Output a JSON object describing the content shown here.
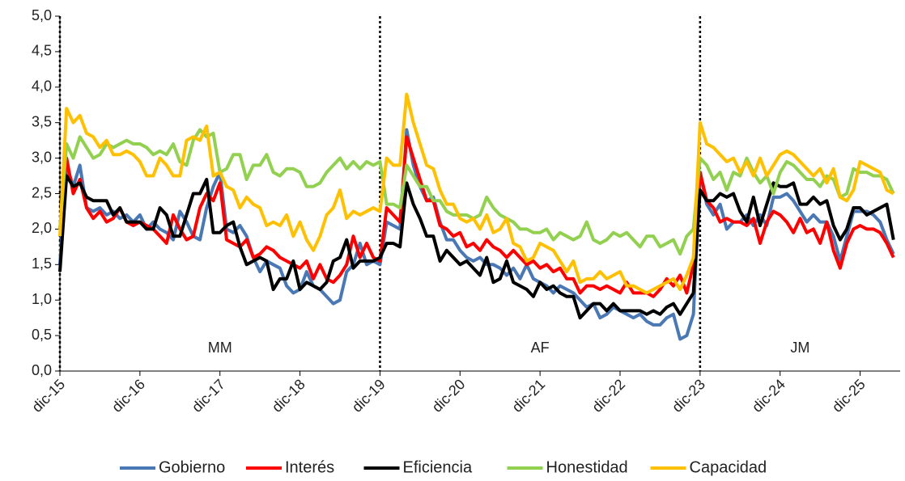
{
  "chart_data": {
    "type": "line",
    "categories": [
      "dic-15",
      null,
      null,
      null,
      null,
      null,
      null,
      null,
      null,
      null,
      null,
      null,
      "dic-16",
      null,
      null,
      null,
      null,
      null,
      null,
      null,
      null,
      null,
      null,
      null,
      "dic-17",
      null,
      null,
      null,
      null,
      null,
      null,
      null,
      null,
      null,
      null,
      null,
      "dic-18",
      null,
      null,
      null,
      null,
      null,
      null,
      null,
      null,
      null,
      null,
      null,
      "dic-19",
      null,
      null,
      null,
      null,
      null,
      null,
      null,
      null,
      null,
      null,
      null,
      "dic-20",
      null,
      null,
      null,
      null,
      null,
      null,
      null,
      null,
      null,
      null,
      null,
      "dic-21",
      null,
      null,
      null,
      null,
      null,
      null,
      null,
      null,
      null,
      null,
      null,
      "dic-22",
      null,
      null,
      null,
      null,
      null,
      null,
      null,
      null,
      null,
      null,
      null,
      "dic-23",
      null,
      null,
      null,
      null,
      null,
      null,
      null,
      null,
      null,
      null,
      null,
      "dic-24",
      null,
      null,
      null,
      null,
      null,
      null,
      null,
      null,
      null,
      null,
      null,
      "dic-25",
      null,
      null,
      null,
      null,
      null
    ],
    "series": [
      {
        "name": "Gobierno",
        "color": "#4a78b5",
        "values": [
          1.5,
          2.9,
          2.6,
          2.9,
          2.3,
          2.25,
          2.3,
          2.2,
          2.25,
          2.15,
          2.2,
          2.1,
          2.2,
          2.0,
          2.1,
          2.0,
          1.95,
          1.85,
          2.25,
          2.1,
          1.9,
          1.85,
          2.3,
          2.6,
          2.8,
          2.0,
          1.95,
          2.05,
          1.9,
          1.6,
          1.4,
          1.55,
          1.5,
          1.45,
          1.2,
          1.1,
          1.15,
          1.4,
          1.2,
          1.15,
          1.05,
          0.95,
          1.0,
          1.4,
          1.5,
          1.8,
          1.5,
          1.55,
          1.5,
          2.1,
          2.05,
          2.0,
          3.4,
          2.9,
          2.6,
          2.4,
          2.45,
          2.1,
          1.85,
          1.85,
          1.7,
          1.6,
          1.55,
          1.6,
          1.5,
          1.5,
          1.45,
          1.35,
          1.45,
          1.3,
          1.5,
          1.3,
          1.25,
          1.2,
          1.1,
          1.2,
          1.15,
          1.1,
          1.0,
          0.9,
          0.95,
          0.75,
          0.8,
          0.9,
          0.85,
          0.8,
          0.75,
          0.8,
          0.7,
          0.65,
          0.65,
          0.75,
          0.8,
          0.45,
          0.5,
          0.8,
          2.8,
          2.35,
          2.2,
          2.35,
          2.0,
          2.1,
          2.1,
          2.2,
          2.05,
          2.2,
          2.05,
          2.45,
          2.45,
          2.5,
          2.4,
          2.25,
          2.1,
          2.2,
          2.1,
          2.1,
          1.9,
          1.55,
          1.9,
          2.25,
          2.25,
          2.25,
          2.2,
          2.1,
          1.85,
          1.65
        ]
      },
      {
        "name": "Interés",
        "color": "#ff0000",
        "values": [
          2.0,
          3.0,
          2.5,
          2.7,
          2.3,
          2.15,
          2.25,
          2.1,
          2.15,
          2.3,
          2.1,
          2.05,
          2.1,
          2.05,
          2.0,
          1.9,
          1.8,
          2.2,
          2.0,
          1.85,
          1.9,
          2.3,
          2.5,
          2.4,
          2.65,
          1.85,
          1.8,
          1.75,
          1.85,
          1.6,
          1.65,
          1.75,
          1.7,
          1.6,
          1.55,
          1.5,
          1.45,
          1.55,
          1.3,
          1.5,
          1.3,
          1.25,
          1.35,
          1.5,
          1.9,
          1.6,
          1.8,
          1.6,
          1.55,
          2.3,
          2.2,
          2.1,
          3.3,
          3.0,
          2.7,
          2.4,
          2.4,
          2.05,
          2.0,
          1.9,
          1.95,
          1.75,
          1.8,
          1.7,
          1.85,
          1.75,
          1.7,
          1.6,
          1.7,
          1.6,
          1.5,
          1.55,
          1.45,
          1.5,
          1.4,
          1.45,
          1.3,
          1.3,
          1.1,
          1.2,
          1.2,
          1.15,
          1.2,
          1.15,
          1.1,
          1.25,
          1.1,
          1.1,
          1.1,
          1.05,
          1.15,
          1.3,
          1.2,
          1.35,
          1.1,
          1.5,
          2.8,
          2.4,
          2.3,
          2.1,
          2.15,
          2.1,
          2.1,
          2.05,
          2.15,
          1.8,
          2.1,
          2.25,
          2.2,
          2.1,
          1.95,
          2.15,
          1.95,
          2.0,
          1.8,
          2.1,
          1.7,
          1.45,
          1.8,
          2.0,
          2.05,
          2.0,
          2.0,
          1.95,
          1.8,
          1.6
        ]
      },
      {
        "name": "Eficiencia",
        "color": "#000000",
        "values": [
          1.4,
          2.75,
          2.6,
          2.65,
          2.45,
          2.4,
          2.4,
          2.4,
          2.2,
          2.3,
          2.1,
          2.1,
          2.1,
          2.0,
          2.0,
          2.3,
          2.2,
          1.9,
          1.9,
          2.2,
          2.5,
          2.5,
          2.7,
          1.95,
          1.95,
          2.05,
          2.1,
          1.75,
          1.5,
          1.55,
          1.6,
          1.55,
          1.15,
          1.3,
          1.3,
          1.55,
          1.15,
          1.25,
          1.2,
          1.15,
          1.25,
          1.55,
          1.6,
          1.85,
          1.45,
          1.55,
          1.55,
          1.55,
          1.6,
          1.8,
          1.8,
          1.75,
          2.65,
          2.35,
          2.15,
          1.9,
          1.9,
          1.55,
          1.7,
          1.6,
          1.5,
          1.55,
          1.45,
          1.35,
          1.6,
          1.25,
          1.3,
          1.55,
          1.25,
          1.2,
          1.15,
          1.05,
          1.25,
          1.15,
          1.2,
          1.1,
          1.05,
          1.05,
          0.75,
          0.85,
          0.95,
          0.95,
          0.85,
          0.95,
          0.85,
          0.85,
          0.85,
          0.85,
          0.8,
          0.85,
          0.8,
          0.9,
          0.95,
          0.8,
          0.95,
          1.1,
          2.55,
          2.4,
          2.4,
          2.5,
          2.45,
          2.5,
          2.25,
          2.1,
          2.45,
          2.05,
          2.35,
          2.65,
          2.6,
          2.6,
          2.65,
          2.35,
          2.35,
          2.45,
          2.35,
          2.4,
          2.05,
          1.85,
          2.0,
          2.3,
          2.3,
          2.2,
          2.25,
          2.3,
          2.35,
          1.85
        ]
      },
      {
        "name": "Honestidad",
        "color": "#92d050",
        "values": [
          2.0,
          3.2,
          3.0,
          3.3,
          3.15,
          3.0,
          3.05,
          3.2,
          3.15,
          3.2,
          3.25,
          3.2,
          3.2,
          3.15,
          3.05,
          3.1,
          3.05,
          3.2,
          2.95,
          2.9,
          3.25,
          3.4,
          3.3,
          3.35,
          2.8,
          2.85,
          3.05,
          3.05,
          2.7,
          2.9,
          2.9,
          3.05,
          2.8,
          2.75,
          2.85,
          2.85,
          2.8,
          2.6,
          2.6,
          2.65,
          2.8,
          2.9,
          3.0,
          2.85,
          2.95,
          2.85,
          2.95,
          2.9,
          2.95,
          2.35,
          2.35,
          2.3,
          2.9,
          2.75,
          2.6,
          2.6,
          2.4,
          2.4,
          2.25,
          2.2,
          2.2,
          2.2,
          2.15,
          2.2,
          2.45,
          2.3,
          2.2,
          2.15,
          2.1,
          2.0,
          2.0,
          1.95,
          1.95,
          2.0,
          1.85,
          1.95,
          1.9,
          1.85,
          1.9,
          2.1,
          1.85,
          1.8,
          1.85,
          1.95,
          1.9,
          1.95,
          1.85,
          1.75,
          1.9,
          1.9,
          1.75,
          1.8,
          1.85,
          1.65,
          1.9,
          2.0,
          3.0,
          2.9,
          2.7,
          2.8,
          2.55,
          2.8,
          2.75,
          3.0,
          2.8,
          2.65,
          2.75,
          2.5,
          2.8,
          2.95,
          2.9,
          2.8,
          2.7,
          2.7,
          2.6,
          2.75,
          2.7,
          2.45,
          2.5,
          2.85,
          2.8,
          2.8,
          2.75,
          2.75,
          2.7,
          2.5
        ]
      },
      {
        "name": "Capacidad",
        "color": "#ffc000",
        "values": [
          1.9,
          3.7,
          3.5,
          3.6,
          3.35,
          3.3,
          3.15,
          3.25,
          3.05,
          3.05,
          3.1,
          3.05,
          2.95,
          2.75,
          2.75,
          3.0,
          2.9,
          2.75,
          2.75,
          3.25,
          3.3,
          3.25,
          3.45,
          2.75,
          2.8,
          2.6,
          2.55,
          2.3,
          2.45,
          2.35,
          2.3,
          2.05,
          2.1,
          2.05,
          2.2,
          1.9,
          2.1,
          1.85,
          1.7,
          1.9,
          2.2,
          2.3,
          2.55,
          2.15,
          2.25,
          2.2,
          2.25,
          2.3,
          2.25,
          3.0,
          2.9,
          2.9,
          3.9,
          3.5,
          3.2,
          2.9,
          2.85,
          2.55,
          2.35,
          2.35,
          2.15,
          2.1,
          2.15,
          2.0,
          2.2,
          1.95,
          2.0,
          2.15,
          1.8,
          1.75,
          1.55,
          1.6,
          1.8,
          1.75,
          1.7,
          1.55,
          1.4,
          1.55,
          1.25,
          1.3,
          1.3,
          1.4,
          1.3,
          1.35,
          1.4,
          1.2,
          1.2,
          1.15,
          1.1,
          1.15,
          1.2,
          1.25,
          1.3,
          1.15,
          1.35,
          1.6,
          3.5,
          3.2,
          3.15,
          3.05,
          2.95,
          3.0,
          2.8,
          2.95,
          2.75,
          3.0,
          2.75,
          2.9,
          3.05,
          3.1,
          3.05,
          2.95,
          2.85,
          2.75,
          2.85,
          2.65,
          2.85,
          2.45,
          2.4,
          2.55,
          2.95,
          2.9,
          2.85,
          2.8,
          2.55,
          2.5
        ]
      }
    ],
    "ylim": [
      0,
      5
    ],
    "yticks": [
      {
        "value": 0,
        "label": "0,0"
      },
      {
        "value": 0.5,
        "label": "0,5"
      },
      {
        "value": 1,
        "label": "1,0"
      },
      {
        "value": 1.5,
        "label": "1,5"
      },
      {
        "value": 2,
        "label": "2,0"
      },
      {
        "value": 2.5,
        "label": "2,5"
      },
      {
        "value": 3,
        "label": "3,0"
      },
      {
        "value": 3.5,
        "label": "3,5"
      },
      {
        "value": 4,
        "label": "4,0"
      },
      {
        "value": 4.5,
        "label": "4,5"
      },
      {
        "value": 5,
        "label": "5,0"
      }
    ],
    "grid": false,
    "dividers": [
      "dic-15",
      "dic-19",
      "dic-23"
    ],
    "annotations": [
      {
        "text": "MM"
      },
      {
        "text": "AF"
      },
      {
        "text": "JM"
      }
    ],
    "legend": "bottom"
  }
}
